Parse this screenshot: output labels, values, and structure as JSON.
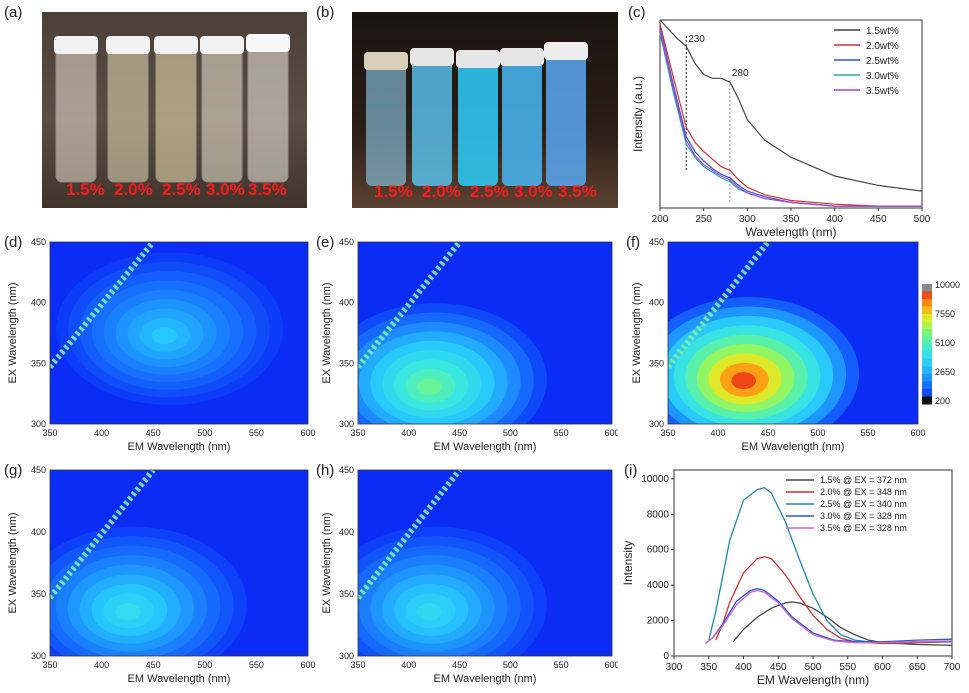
{
  "panels": {
    "a": "(a)",
    "b": "(b)",
    "c": "(c)",
    "d": "(d)",
    "e": "(e)",
    "f": "(f)",
    "g": "(g)",
    "h": "(h)",
    "i": "(i)"
  },
  "photo_a": {
    "vial_labels": [
      "1.5%",
      "2.0%",
      "2.5%",
      "3.0%",
      "3.5%"
    ]
  },
  "photo_b": {
    "vial_labels": [
      "1.5%",
      "2.0%",
      "2.5%",
      "3.0%",
      "3.5%"
    ]
  },
  "colors": {
    "label_red": "#ff1a1a",
    "map_background": "#0a2cf5",
    "series_c": [
      "#444444",
      "#cc3333",
      "#3355cc",
      "#22aaaa",
      "#aa44cc"
    ],
    "series_i": [
      "#444444",
      "#cc3333",
      "#2288aa",
      "#3355cc",
      "#cc66cc"
    ]
  },
  "colorbar": {
    "ticks": [
      "10000",
      "7550",
      "5100",
      "2650",
      "200"
    ]
  },
  "chart_data": [
    {
      "panel": "c",
      "type": "line",
      "xlabel": "Wavelength (nm)",
      "ylabel": "Intensity (a.u.)",
      "xlim": [
        200,
        500
      ],
      "ylim": [
        0,
        1
      ],
      "xticks": [
        "200",
        "250",
        "300",
        "350",
        "400",
        "450",
        "500"
      ],
      "annotations": [
        {
          "text": "230",
          "x": 230
        },
        {
          "text": "280",
          "x": 280
        }
      ],
      "legend_position": "top-right",
      "series": [
        {
          "name": "1.5wt%",
          "x": [
            200,
            210,
            220,
            230,
            240,
            250,
            260,
            270,
            280,
            290,
            300,
            320,
            350,
            400,
            450,
            500
          ],
          "y": [
            1.0,
            0.95,
            0.9,
            0.86,
            0.77,
            0.71,
            0.69,
            0.69,
            0.67,
            0.58,
            0.47,
            0.36,
            0.27,
            0.17,
            0.12,
            0.09
          ]
        },
        {
          "name": "2.0wt%",
          "x": [
            200,
            215,
            230,
            240,
            250,
            260,
            270,
            280,
            290,
            300,
            320,
            350,
            400,
            450,
            500
          ],
          "y": [
            0.98,
            0.7,
            0.43,
            0.35,
            0.3,
            0.26,
            0.22,
            0.2,
            0.15,
            0.11,
            0.07,
            0.04,
            0.02,
            0.01,
            0.01
          ]
        },
        {
          "name": "2.5wt%",
          "x": [
            200,
            215,
            230,
            240,
            250,
            260,
            270,
            280,
            290,
            300,
            320,
            350,
            400,
            450,
            500
          ],
          "y": [
            0.96,
            0.66,
            0.38,
            0.3,
            0.25,
            0.21,
            0.18,
            0.16,
            0.12,
            0.09,
            0.06,
            0.03,
            0.01,
            0.01,
            0.01
          ]
        },
        {
          "name": "3.0wt%",
          "x": [
            200,
            215,
            230,
            240,
            250,
            260,
            270,
            280,
            290,
            300,
            320,
            350,
            400,
            450,
            500
          ],
          "y": [
            0.93,
            0.62,
            0.34,
            0.27,
            0.22,
            0.19,
            0.16,
            0.14,
            0.1,
            0.08,
            0.05,
            0.03,
            0.01,
            0.01,
            0.01
          ]
        },
        {
          "name": "3.5wt%",
          "x": [
            200,
            215,
            230,
            240,
            250,
            260,
            270,
            280,
            290,
            300,
            320,
            350,
            400,
            450,
            500
          ],
          "y": [
            0.95,
            0.64,
            0.36,
            0.28,
            0.23,
            0.2,
            0.17,
            0.15,
            0.11,
            0.08,
            0.05,
            0.03,
            0.01,
            0.01,
            0.01
          ]
        }
      ]
    },
    {
      "panel": "d",
      "type": "heatmap",
      "xlabel": "EM Wavelength (nm)",
      "ylabel": "EX Wavelength (nm)",
      "xlim": [
        350,
        600
      ],
      "ylim": [
        300,
        450
      ],
      "xticks": [
        "350",
        "400",
        "450",
        "500",
        "550",
        "600"
      ],
      "yticks": [
        "300",
        "350",
        "400",
        "450"
      ],
      "peak": {
        "em": 460,
        "ex": 372,
        "intensity": 3000
      }
    },
    {
      "panel": "e",
      "type": "heatmap",
      "xlabel": "EM Wavelength (nm)",
      "ylabel": "EX Wavelength (nm)",
      "xlim": [
        350,
        600
      ],
      "ylim": [
        300,
        450
      ],
      "xticks": [
        "350",
        "400",
        "450",
        "500",
        "550",
        "600"
      ],
      "yticks": [
        "300",
        "350",
        "400",
        "450"
      ],
      "peak": {
        "em": 420,
        "ex": 330,
        "intensity": 5600
      }
    },
    {
      "panel": "f",
      "type": "heatmap",
      "xlabel": "EM Wavelength (nm)",
      "ylabel": "EX Wavelength (nm)",
      "xlim": [
        350,
        600
      ],
      "ylim": [
        300,
        450
      ],
      "xticks": [
        "350",
        "400",
        "450",
        "500",
        "550",
        "600"
      ],
      "yticks": [
        "300",
        "350",
        "400",
        "450"
      ],
      "peak": {
        "em": 425,
        "ex": 335,
        "intensity": 9500
      }
    },
    {
      "panel": "g",
      "type": "heatmap",
      "xlabel": "EM Wavelength (nm)",
      "ylabel": "EX Wavelength (nm)",
      "xlim": [
        350,
        600
      ],
      "ylim": [
        300,
        450
      ],
      "xticks": [
        "350",
        "400",
        "450",
        "500",
        "550",
        "600"
      ],
      "yticks": [
        "300",
        "350",
        "400",
        "450"
      ],
      "peak": {
        "em": 425,
        "ex": 335,
        "intensity": 3800
      }
    },
    {
      "panel": "h",
      "type": "heatmap",
      "xlabel": "EM Wavelength (nm)",
      "ylabel": "EX Wavelength (nm)",
      "xlim": [
        350,
        600
      ],
      "ylim": [
        300,
        450
      ],
      "xticks": [
        "350",
        "400",
        "450",
        "500",
        "550",
        "600"
      ],
      "yticks": [
        "300",
        "350",
        "400",
        "450"
      ],
      "peak": {
        "em": 420,
        "ex": 335,
        "intensity": 3700
      }
    },
    {
      "panel": "i",
      "type": "line",
      "xlabel": "EM Wavelength (nm)",
      "ylabel": "Intensity",
      "xlim": [
        300,
        700
      ],
      "ylim": [
        0,
        10500
      ],
      "xticks": [
        "300",
        "350",
        "400",
        "450",
        "500",
        "550",
        "600",
        "650",
        "700"
      ],
      "yticks": [
        "0",
        "2000",
        "4000",
        "6000",
        "8000",
        "10000"
      ],
      "legend_position": "top-right",
      "series": [
        {
          "name": "1.5% @ EX = 372 nm",
          "x": [
            385,
            400,
            420,
            440,
            460,
            470,
            480,
            500,
            520,
            540,
            560,
            580,
            600,
            650,
            700
          ],
          "y": [
            800,
            1500,
            2200,
            2700,
            3000,
            3050,
            3000,
            2700,
            2200,
            1600,
            1200,
            900,
            750,
            650,
            600
          ]
        },
        {
          "name": "2.0% @ EX = 348 nm",
          "x": [
            360,
            370,
            380,
            400,
            420,
            430,
            440,
            460,
            480,
            500,
            520,
            540,
            560,
            580,
            600,
            650,
            700
          ],
          "y": [
            900,
            1800,
            3000,
            4700,
            5500,
            5600,
            5500,
            4600,
            3400,
            2300,
            1500,
            1000,
            800,
            750,
            700,
            750,
            800
          ]
        },
        {
          "name": "2.5% @ EX = 340 nm",
          "x": [
            350,
            360,
            370,
            380,
            400,
            420,
            430,
            440,
            460,
            480,
            500,
            520,
            540,
            560,
            580,
            600,
            650,
            700
          ],
          "y": [
            900,
            2500,
            4500,
            6500,
            8800,
            9400,
            9500,
            9200,
            7600,
            5500,
            3500,
            2000,
            1200,
            900,
            800,
            750,
            800,
            800
          ]
        },
        {
          "name": "3.0% @ EX = 328 nm",
          "x": [
            345,
            355,
            370,
            390,
            410,
            420,
            430,
            450,
            470,
            500,
            530,
            560,
            600,
            650,
            700
          ],
          "y": [
            700,
            1000,
            1800,
            3100,
            3700,
            3800,
            3700,
            3100,
            2200,
            1300,
            900,
            800,
            800,
            900,
            950
          ]
        },
        {
          "name": "3.5% @ EX = 328 nm",
          "x": [
            345,
            355,
            370,
            390,
            410,
            420,
            430,
            450,
            470,
            500,
            530,
            560,
            600,
            650,
            700
          ],
          "y": [
            700,
            1000,
            1700,
            2900,
            3600,
            3700,
            3600,
            3000,
            2100,
            1200,
            850,
            750,
            750,
            800,
            850
          ]
        }
      ]
    }
  ]
}
